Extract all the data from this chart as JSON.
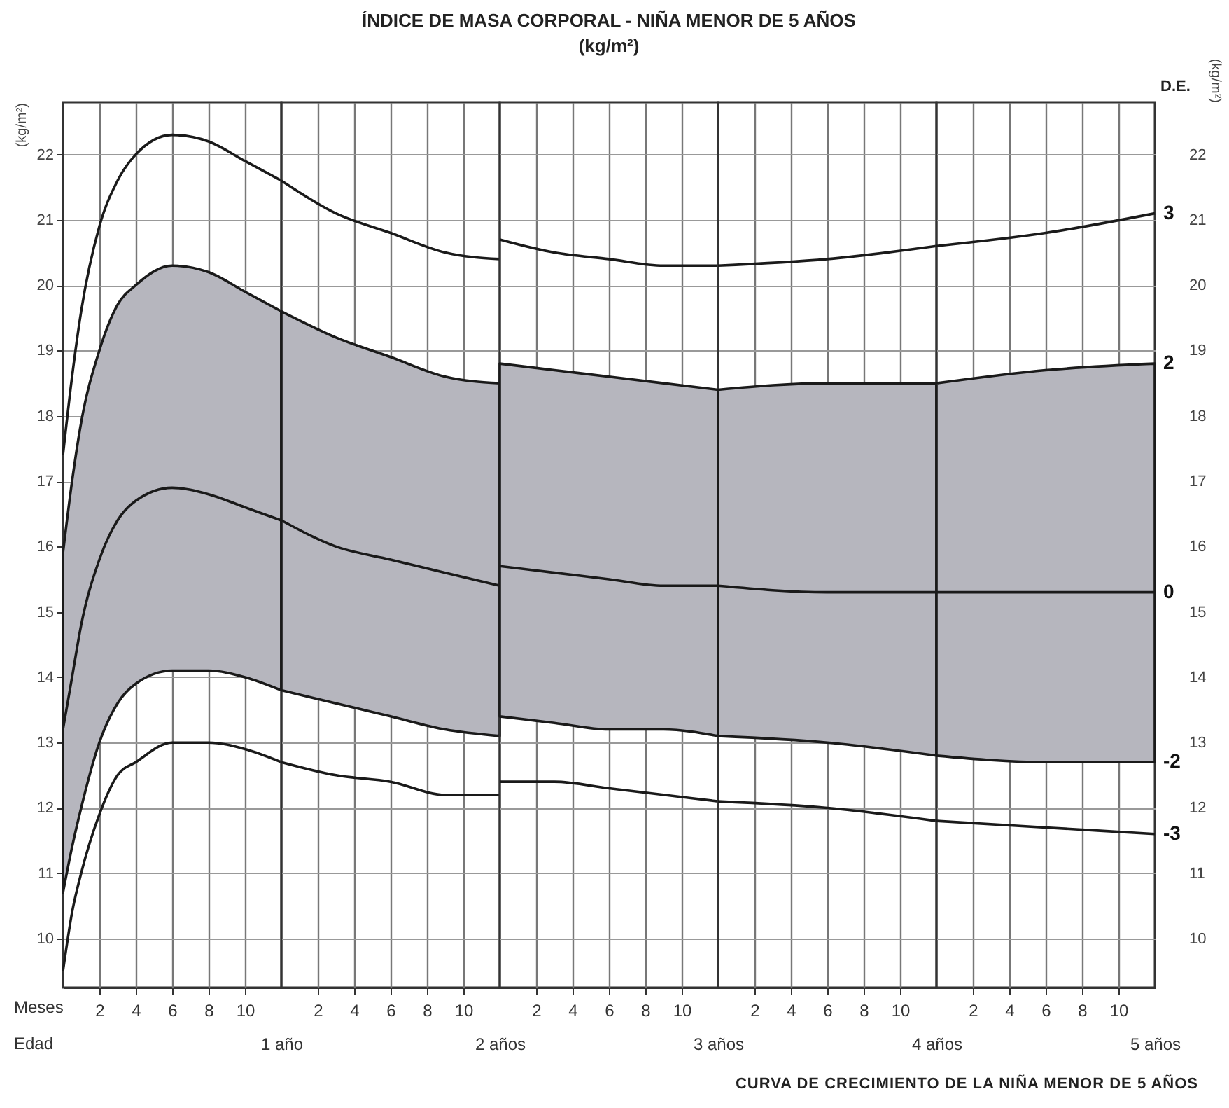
{
  "chart_data": [
    {
      "type": "line",
      "xlabel": "1 año",
      "ylabel": "(kg/m²)",
      "grid": true,
      "annotations": [
        "Meses",
        "Edad"
      ],
      "x": [
        0,
        0.5,
        1,
        2,
        3,
        4,
        6,
        8,
        10,
        12
      ],
      "series": [
        {
          "color": "#1a1a1a",
          "values": [
            17.4,
            18.6,
            19.6,
            20.9,
            21.6,
            22.0,
            22.3,
            22.2,
            21.9,
            21.6
          ]
        },
        {
          "color": "#1a1a1a",
          "values": [
            13.2,
            14.0,
            14.8,
            15.8,
            16.4,
            16.7,
            16.9,
            16.8,
            16.6,
            16.4
          ],
          "lower": [
            10.7,
            11.4,
            12.0,
            13.0,
            13.6,
            13.9,
            14.1,
            14.1,
            14.0,
            13.8
          ],
          "upper": [
            15.9,
            17.0,
            17.9,
            19.0,
            19.7,
            20.0,
            20.3,
            20.2,
            19.9,
            19.6
          ]
        },
        {
          "color": "#1a1a1a",
          "values": [
            9.5,
            10.4,
            11.0,
            11.9,
            12.5,
            12.7,
            13.0,
            13.0,
            12.9,
            12.7
          ]
        }
      ],
      "xlim": [
        0,
        12
      ],
      "xticks": [
        2,
        4,
        6,
        8,
        10
      ],
      "ylim": [
        9.25,
        22.8
      ],
      "yticks": [
        10,
        11,
        12,
        13,
        14,
        15,
        16,
        17,
        18,
        19,
        20,
        21,
        22
      ]
    },
    {
      "type": "line",
      "xlabel": "2 años",
      "grid": true,
      "tick_labels": "x",
      "x": [
        0,
        3,
        6,
        9,
        12
      ],
      "series": [
        {
          "color": "#1a1a1a",
          "values": [
            21.6,
            21.1,
            20.8,
            20.5,
            20.4
          ]
        },
        {
          "color": "#1a1a1a",
          "values": [
            16.4,
            16.0,
            15.8,
            15.6,
            15.4
          ],
          "lower": [
            13.8,
            13.6,
            13.4,
            13.2,
            13.1
          ],
          "upper": [
            19.6,
            19.2,
            18.9,
            18.6,
            18.5
          ]
        },
        {
          "color": "#1a1a1a",
          "values": [
            12.7,
            12.5,
            12.4,
            12.2,
            12.2
          ]
        }
      ],
      "xlim": [
        0,
        12
      ],
      "xticks": [
        2,
        4,
        6,
        8,
        10
      ],
      "ylim": [
        9.25,
        22.8
      ],
      "yticks": [
        10,
        11,
        12,
        13,
        14,
        15,
        16,
        17,
        18,
        19,
        20,
        21,
        22
      ]
    },
    {
      "type": "line",
      "title": "ÍNDICE DE MASA CORPORAL - NIÑA MENOR DE 5 AÑOS",
      "subtitle": "(kg/m²)",
      "xlabel": "3 años",
      "grid": true,
      "tick_labels": "x",
      "x": [
        0,
        3,
        6,
        9,
        12
      ],
      "series": [
        {
          "color": "#1a1a1a",
          "values": [
            20.7,
            20.5,
            20.4,
            20.3,
            20.3
          ]
        },
        {
          "color": "#1a1a1a",
          "values": [
            15.7,
            15.6,
            15.5,
            15.4,
            15.4
          ],
          "lower": [
            13.4,
            13.3,
            13.2,
            13.2,
            13.1
          ],
          "upper": [
            18.8,
            18.7,
            18.6,
            18.5,
            18.4
          ]
        },
        {
          "color": "#1a1a1a",
          "values": [
            12.4,
            12.4,
            12.3,
            12.2,
            12.1
          ]
        }
      ],
      "xlim": [
        0,
        12
      ],
      "xticks": [
        2,
        4,
        6,
        8,
        10
      ],
      "ylim": [
        9.25,
        22.8
      ],
      "yticks": [
        10,
        11,
        12,
        13,
        14,
        15,
        16,
        17,
        18,
        19,
        20,
        21,
        22
      ]
    },
    {
      "type": "line",
      "xlabel": "4 años",
      "grid": true,
      "tick_labels": "x",
      "x": [
        0,
        6,
        12
      ],
      "series": [
        {
          "color": "#1a1a1a",
          "values": [
            20.3,
            20.4,
            20.6
          ]
        },
        {
          "color": "#1a1a1a",
          "values": [
            15.4,
            15.3,
            15.3
          ],
          "lower": [
            13.1,
            13.0,
            12.8
          ],
          "upper": [
            18.4,
            18.5,
            18.5
          ]
        },
        {
          "color": "#1a1a1a",
          "values": [
            12.1,
            12.0,
            11.8
          ]
        }
      ],
      "xlim": [
        0,
        12
      ],
      "xticks": [
        2,
        4,
        6,
        8,
        10
      ],
      "ylim": [
        9.25,
        22.8
      ],
      "yticks": [
        10,
        11,
        12,
        13,
        14,
        15,
        16,
        17,
        18,
        19,
        20,
        21,
        22
      ]
    },
    {
      "type": "line",
      "xlabel": "5 años",
      "ylabel": "(kg/m²)",
      "legend_title": "D.E.",
      "grid": true,
      "annotations": [
        {
          "text": "2",
          "x": 12,
          "y": 18.8
        },
        {
          "text": "-2",
          "x": 12,
          "y": 12.7
        },
        "CURVA DE CRECIMIENTO DE LA NIÑA MENOR DE 5 AÑOS"
      ],
      "x": [
        0,
        6,
        12
      ],
      "series": [
        {
          "name": "3",
          "color": "#1a1a1a",
          "values": [
            20.6,
            20.8,
            21.1
          ]
        },
        {
          "name": "0",
          "color": "#1a1a1a",
          "values": [
            15.3,
            15.3,
            15.3
          ],
          "lower": [
            12.8,
            12.7,
            12.7
          ],
          "upper": [
            18.5,
            18.7,
            18.8
          ]
        },
        {
          "name": "-3",
          "color": "#1a1a1a",
          "values": [
            11.8,
            11.7,
            11.6
          ]
        }
      ],
      "xlim": [
        0,
        12
      ],
      "xticks": [
        2,
        4,
        6,
        8,
        10
      ],
      "ylim": [
        9.25,
        22.8
      ],
      "yticks": [
        10,
        11,
        12,
        13,
        14,
        15,
        16,
        17,
        18,
        19,
        20,
        21,
        22
      ]
    }
  ]
}
